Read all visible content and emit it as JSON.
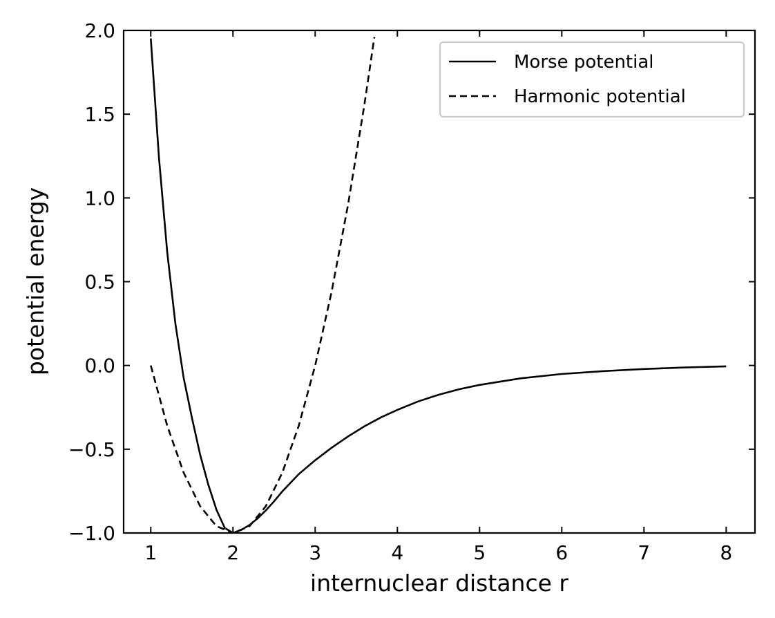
{
  "chart_data": {
    "type": "line",
    "xlabel": "internuclear distance r",
    "ylabel": "potential energy",
    "xlim": [
      0.67,
      8.35
    ],
    "ylim": [
      -1.0,
      2.0
    ],
    "xticks": [
      1,
      2,
      3,
      4,
      5,
      6,
      7,
      8
    ],
    "xtick_labels": [
      "1",
      "2",
      "3",
      "4",
      "5",
      "6",
      "7",
      "8"
    ],
    "yticks": [
      -1.0,
      -0.5,
      0.0,
      0.5,
      1.0,
      1.5,
      2.0
    ],
    "ytick_labels": [
      "−1.0",
      "−0.5",
      "0.0",
      "0.5",
      "1.0",
      "1.5",
      "2.0"
    ],
    "tick_direction": "in",
    "ticks_on_all_sides": true,
    "grid": false,
    "legend": {
      "placement": "upper right"
    },
    "series": [
      {
        "name": "Morse potential",
        "style": "solid",
        "color": "#000000",
        "x": [
          1.0,
          1.1,
          1.2,
          1.3,
          1.4,
          1.5,
          1.6,
          1.7,
          1.8,
          1.9,
          2.0,
          2.1,
          2.2,
          2.3,
          2.4,
          2.5,
          2.6,
          2.8,
          3.0,
          3.2,
          3.4,
          3.6,
          3.8,
          4.0,
          4.25,
          4.5,
          4.75,
          5.0,
          5.5,
          6.0,
          6.5,
          7.0,
          7.5,
          8.0
        ],
        "y": [
          1.952,
          1.237,
          0.676,
          0.247,
          -0.075,
          -0.311,
          -0.532,
          -0.712,
          -0.863,
          -0.97,
          -1.0,
          -0.982,
          -0.953,
          -0.913,
          -0.865,
          -0.811,
          -0.752,
          -0.649,
          -0.566,
          -0.491,
          -0.424,
          -0.363,
          -0.31,
          -0.265,
          -0.215,
          -0.175,
          -0.142,
          -0.116,
          -0.077,
          -0.051,
          -0.034,
          -0.021,
          -0.012,
          -0.005
        ]
      },
      {
        "name": "Harmonic potential",
        "style": "dashed",
        "color": "#000000",
        "x": [
          1.0,
          1.2,
          1.4,
          1.6,
          1.8,
          2.0,
          2.2,
          2.4,
          2.6,
          2.8,
          3.0,
          3.2,
          3.4,
          3.6,
          3.72
        ],
        "y": [
          0.0,
          -0.36,
          -0.64,
          -0.84,
          -0.96,
          -1.0,
          -0.96,
          -0.84,
          -0.64,
          -0.36,
          0.0,
          0.44,
          0.96,
          1.56,
          1.96
        ]
      }
    ]
  }
}
